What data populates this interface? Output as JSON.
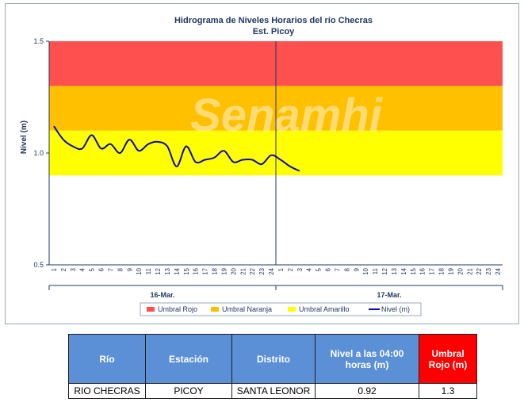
{
  "chart_data": {
    "type": "line",
    "title": "Hidrograma de Niveles Horarios del río Checras",
    "subtitle": "Est. Picoy",
    "ylabel": "Nivel (m)",
    "ylim": [
      0.5,
      1.5
    ],
    "yticks": [
      "0.5",
      "1.0",
      "1.5"
    ],
    "xticks": [
      "1",
      "2",
      "3",
      "4",
      "5",
      "6",
      "7",
      "8",
      "9",
      "10",
      "11",
      "12",
      "13",
      "14",
      "15",
      "16",
      "17",
      "18",
      "19",
      "20",
      "21",
      "22",
      "23",
      "24",
      "1",
      "2",
      "3",
      "4",
      "5",
      "6",
      "7",
      "8",
      "9",
      "10",
      "11",
      "12",
      "13",
      "14",
      "15",
      "16",
      "17",
      "18",
      "19",
      "20",
      "21",
      "22",
      "23",
      "24"
    ],
    "days": [
      "16-Mar.",
      "17-Mar."
    ],
    "thresholds": [
      {
        "name": "Umbral Rojo",
        "from": 1.3,
        "to": 1.5,
        "color": "#ff5050"
      },
      {
        "name": "Umbral Naranja",
        "from": 1.1,
        "to": 1.3,
        "color": "#ffc000"
      },
      {
        "name": "Umbral Amarillo",
        "from": 0.9,
        "to": 1.1,
        "color": "#ffff00"
      }
    ],
    "series": [
      {
        "name": "Nivel (m)",
        "color": "#0b0bb4",
        "x": [
          1,
          2,
          3,
          4,
          5,
          6,
          7,
          8,
          9,
          10,
          11,
          12,
          13,
          14,
          15,
          16,
          17,
          18,
          19,
          20,
          21,
          22,
          23,
          24,
          25,
          26,
          27
        ],
        "values": [
          1.12,
          1.06,
          1.03,
          1.02,
          1.08,
          1.02,
          1.04,
          1.0,
          1.06,
          1.01,
          1.04,
          1.05,
          1.03,
          0.94,
          1.03,
          0.96,
          0.97,
          0.98,
          1.01,
          0.96,
          0.97,
          0.97,
          0.95,
          0.99,
          0.97,
          0.94,
          0.92
        ]
      }
    ],
    "legend": [
      "Umbral Rojo",
      "Umbral Naranja",
      "Umbral Amarillo",
      "Nivel (m)"
    ],
    "legend_position": "bottom",
    "watermark": "Senamhi"
  },
  "table": {
    "headers": [
      "Río",
      "Estación",
      "Distrito",
      "Nivel a las 04:00 horas (m)",
      "Umbral Rojo (m)"
    ],
    "rows": [
      [
        "RIO CHECRAS",
        "PICOY",
        "SANTA LEONOR",
        "0.92",
        "1.3"
      ]
    ]
  }
}
